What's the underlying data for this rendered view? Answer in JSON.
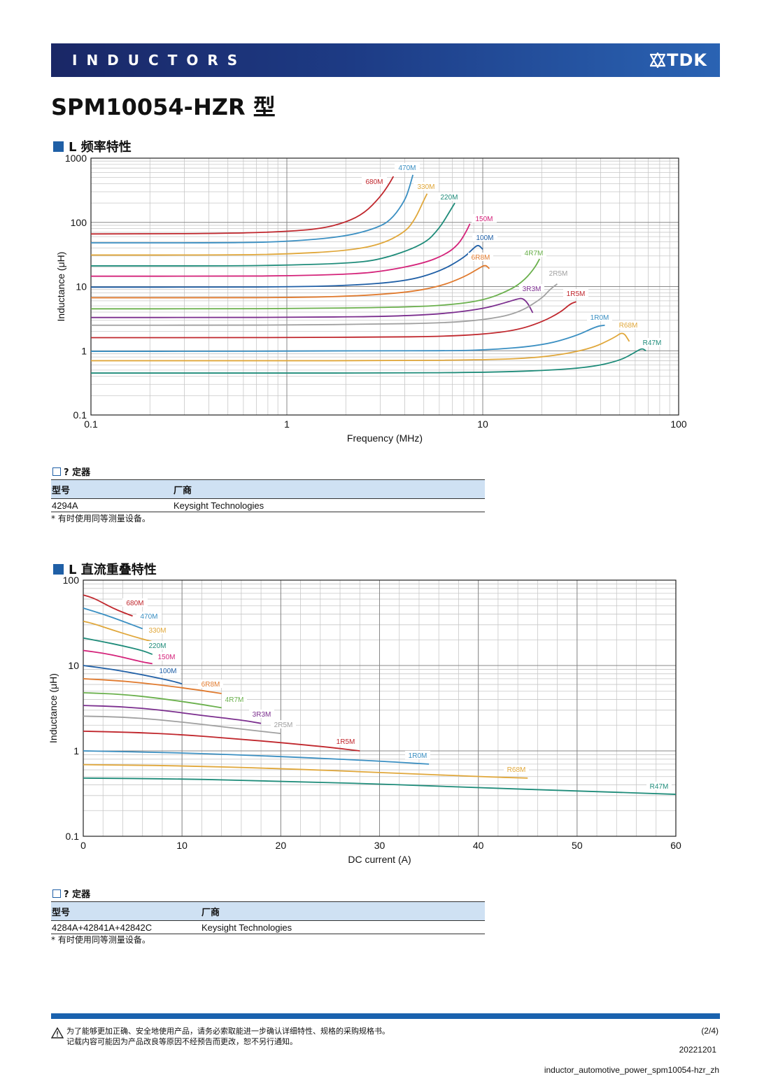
{
  "header": {
    "category": "INDUCTORS",
    "brand": "TDK"
  },
  "page_title": "SPM10054-HZR 型",
  "section1": {
    "title": "L 频率特性",
    "equipment_title": "? 定器",
    "table_headers": [
      "型号",
      "厂商"
    ],
    "table_row": [
      "4294A",
      "Keysight Technologies"
    ],
    "note": "* 有时使用同等测量设备。"
  },
  "section2": {
    "title": "L 直流重叠特性",
    "equipment_title": "? 定器",
    "table_headers": [
      "型号",
      "厂商"
    ],
    "table_row": [
      "4284A+42841A+42842C",
      "Keysight Technologies"
    ],
    "note": "* 有时使用同等测量设备。"
  },
  "footer": {
    "warning_line1": "为了能够更加正确、安全地使用产品，请务必索取能进一步确认详细特性、规格的采购规格书。",
    "warning_line2": "记载内容可能因为产品改良等原因不经预告而更改，恕不另行通知。",
    "page": "(2/4)",
    "date": "20221201",
    "filename": "inductor_automotive_power_spm10054-hzr_zh"
  },
  "chart_data": [
    {
      "type": "line",
      "xlabel": "Frequency (MHz)",
      "ylabel": "Inductance (μH)",
      "x_scale": "log",
      "y_scale": "log",
      "xlim": [
        0.1,
        100
      ],
      "ylim": [
        0.1,
        1000
      ],
      "x_ticks": [
        "0.1",
        "1",
        "10",
        "100"
      ],
      "y_ticks": [
        "0.1",
        "1",
        "10",
        "100",
        "1000"
      ],
      "grid": true,
      "series": [
        {
          "name": "680M",
          "color": "#c0272d",
          "x": [
            0.1,
            0.5,
            1,
            1.5,
            2,
            2.5,
            3,
            3.3,
            3.5
          ],
          "y": [
            66,
            67,
            72,
            80,
            100,
            140,
            250,
            380,
            520
          ]
        },
        {
          "name": "470M",
          "color": "#3a8fc2",
          "x": [
            0.1,
            0.5,
            1,
            2,
            3,
            3.5,
            4,
            4.2,
            4.4
          ],
          "y": [
            48,
            48,
            50,
            60,
            85,
            120,
            220,
            330,
            550
          ]
        },
        {
          "name": "330M",
          "color": "#e0a73a",
          "x": [
            0.1,
            0.5,
            1,
            2,
            3,
            4,
            4.5,
            5,
            5.2
          ],
          "y": [
            31,
            31,
            32,
            36,
            45,
            70,
            110,
            220,
            280
          ]
        },
        {
          "name": "220M",
          "color": "#1f8c7a",
          "x": [
            0.1,
            0.5,
            1,
            2,
            3,
            5,
            6,
            6.8,
            7.2
          ],
          "y": [
            21,
            21,
            21.5,
            23,
            26,
            45,
            80,
            150,
            200
          ]
        },
        {
          "name": "150M",
          "color": "#d4237a",
          "x": [
            0.1,
            0.5,
            1,
            2,
            3,
            5,
            6.5,
            7.5,
            8.2,
            8.6
          ],
          "y": [
            14.5,
            14.5,
            14.7,
            15.5,
            17,
            23,
            32,
            45,
            70,
            95
          ]
        },
        {
          "name": "100M",
          "color": "#1f5fa6",
          "x": [
            0.1,
            0.5,
            1,
            2,
            4,
            6,
            8,
            9,
            9.5,
            10
          ],
          "y": [
            9.8,
            9.8,
            9.9,
            10.3,
            12,
            17,
            28,
            40,
            45,
            38
          ]
        },
        {
          "name": "6R8M",
          "color": "#e07a2e",
          "x": [
            0.1,
            0.5,
            1,
            2,
            4,
            6,
            8,
            9.5,
            10.3,
            10.8
          ],
          "y": [
            6.7,
            6.7,
            6.75,
            7,
            8,
            10,
            14,
            19,
            22,
            19
          ]
        },
        {
          "name": "4R7M",
          "color": "#6ab04c",
          "x": [
            0.1,
            0.5,
            1,
            3,
            6,
            10,
            14,
            16.5,
            18.5,
            19.5
          ],
          "y": [
            4.5,
            4.5,
            4.55,
            4.7,
            5,
            6,
            9,
            13,
            20,
            27
          ]
        },
        {
          "name": "3R3M",
          "color": "#7b2e8e",
          "x": [
            0.1,
            0.5,
            1,
            3,
            6,
            10,
            13,
            15,
            16,
            17,
            18
          ],
          "y": [
            3.3,
            3.3,
            3.32,
            3.4,
            3.7,
            4.5,
            5.6,
            6.4,
            6.6,
            5.5,
            3.9
          ]
        },
        {
          "name": "2R5M",
          "color": "#a0a0a0",
          "x": [
            0.1,
            0.5,
            1,
            3,
            6,
            10,
            15,
            20,
            22,
            24
          ],
          "y": [
            2.5,
            2.5,
            2.52,
            2.6,
            2.7,
            3,
            3.8,
            6.5,
            9,
            11
          ]
        },
        {
          "name": "1R5M",
          "color": "#c0272d",
          "x": [
            0.1,
            0.5,
            1,
            3,
            6,
            10,
            15,
            20,
            25,
            28,
            30
          ],
          "y": [
            1.6,
            1.6,
            1.61,
            1.63,
            1.67,
            1.8,
            2.1,
            2.8,
            4,
            5.4,
            5.8
          ]
        },
        {
          "name": "1R0M",
          "color": "#3a8fc2",
          "x": [
            0.1,
            0.5,
            1,
            3,
            6,
            10,
            20,
            30,
            38,
            42
          ],
          "y": [
            0.98,
            0.98,
            0.99,
            1,
            1,
            1.02,
            1.2,
            1.7,
            2.4,
            2.5
          ]
        },
        {
          "name": "R68M",
          "color": "#e0a73a",
          "x": [
            0.1,
            0.5,
            1,
            3,
            10,
            20,
            35,
            47,
            52,
            56
          ],
          "y": [
            0.7,
            0.7,
            0.7,
            0.7,
            0.72,
            0.78,
            1.05,
            1.6,
            2.0,
            1.4
          ]
        },
        {
          "name": "R47M",
          "color": "#1f8c7a",
          "x": [
            0.1,
            0.5,
            1,
            3,
            10,
            20,
            35,
            50,
            60,
            65,
            68
          ],
          "y": [
            0.45,
            0.45,
            0.45,
            0.45,
            0.46,
            0.49,
            0.55,
            0.7,
            0.95,
            1.1,
            1.0
          ]
        }
      ]
    },
    {
      "type": "line",
      "xlabel": "DC current (A)",
      "ylabel": "Inductance (μH)",
      "x_scale": "linear",
      "y_scale": "log",
      "xlim": [
        0,
        60
      ],
      "ylim": [
        0.1,
        100
      ],
      "x_ticks": [
        "0",
        "10",
        "20",
        "30",
        "40",
        "50",
        "60"
      ],
      "y_ticks": [
        "0.1",
        "1",
        "10",
        "100"
      ],
      "grid": true,
      "series": [
        {
          "name": "680M",
          "color": "#c0272d",
          "x": [
            0,
            1,
            2,
            3,
            4,
            5
          ],
          "y": [
            67,
            62,
            54,
            47,
            42,
            38
          ]
        },
        {
          "name": "470M",
          "color": "#3a8fc2",
          "x": [
            0,
            2,
            4,
            6
          ],
          "y": [
            47,
            40,
            33,
            27
          ]
        },
        {
          "name": "330M",
          "color": "#e0a73a",
          "x": [
            0,
            1,
            3,
            5,
            7
          ],
          "y": [
            33,
            31,
            26,
            22,
            19
          ]
        },
        {
          "name": "220M",
          "color": "#1f8c7a",
          "x": [
            0,
            2,
            4,
            6,
            7
          ],
          "y": [
            21,
            19,
            17,
            15,
            13.5
          ]
        },
        {
          "name": "150M",
          "color": "#d4237a",
          "x": [
            0,
            2,
            4,
            6,
            7
          ],
          "y": [
            15,
            14,
            12.5,
            11,
            10.5
          ]
        },
        {
          "name": "100M",
          "color": "#1f5fa6",
          "x": [
            0,
            3,
            6,
            9,
            10
          ],
          "y": [
            10,
            9,
            7.8,
            6.6,
            6.1
          ]
        },
        {
          "name": "6R8M",
          "color": "#e07a2e",
          "x": [
            0,
            4,
            8,
            12,
            14
          ],
          "y": [
            7,
            6.6,
            5.9,
            5.1,
            4.7
          ]
        },
        {
          "name": "4R7M",
          "color": "#6ab04c",
          "x": [
            0,
            4,
            8,
            12,
            14
          ],
          "y": [
            4.8,
            4.6,
            4.1,
            3.5,
            3.2
          ]
        },
        {
          "name": "3R3M",
          "color": "#7b2e8e",
          "x": [
            0,
            4,
            8,
            12,
            16,
            18
          ],
          "y": [
            3.4,
            3.3,
            3.0,
            2.6,
            2.3,
            2.1
          ]
        },
        {
          "name": "2R5M",
          "color": "#a0a0a0",
          "x": [
            0,
            4,
            8,
            12,
            16,
            20
          ],
          "y": [
            2.55,
            2.5,
            2.3,
            2.05,
            1.8,
            1.6
          ]
        },
        {
          "name": "1R5M",
          "color": "#c0272d",
          "x": [
            0,
            5,
            10,
            15,
            20,
            25,
            28
          ],
          "y": [
            1.7,
            1.65,
            1.55,
            1.4,
            1.25,
            1.1,
            1.0
          ]
        },
        {
          "name": "1R0M",
          "color": "#3a8fc2",
          "x": [
            0,
            10,
            20,
            30,
            35
          ],
          "y": [
            1.0,
            0.95,
            0.86,
            0.76,
            0.7
          ]
        },
        {
          "name": "R68M",
          "color": "#e0a73a",
          "x": [
            0,
            10,
            20,
            30,
            40,
            45
          ],
          "y": [
            0.69,
            0.67,
            0.62,
            0.56,
            0.5,
            0.48
          ]
        },
        {
          "name": "R47M",
          "color": "#1f8c7a",
          "x": [
            0,
            10,
            20,
            30,
            40,
            50,
            60
          ],
          "y": [
            0.48,
            0.47,
            0.44,
            0.41,
            0.37,
            0.34,
            0.31
          ]
        }
      ]
    }
  ]
}
